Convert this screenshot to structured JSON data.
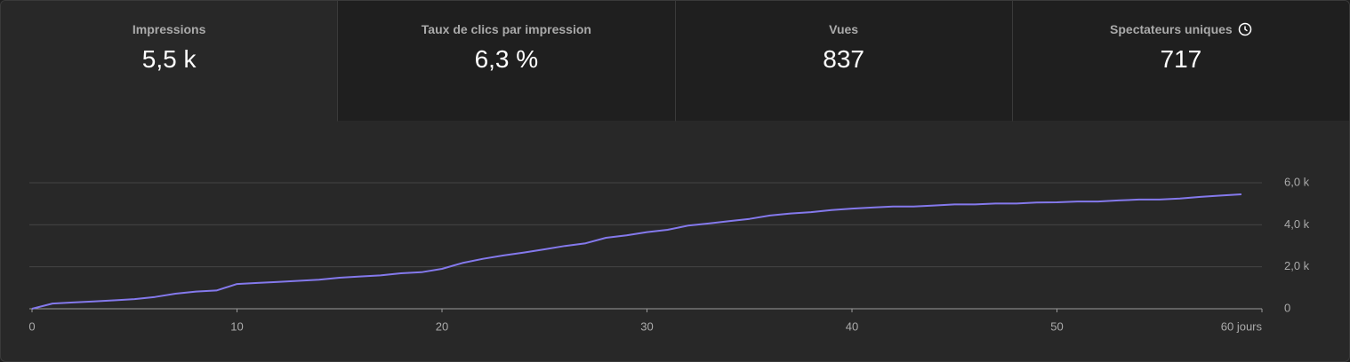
{
  "metrics": [
    {
      "label": "Impressions",
      "value": "5,5 k"
    },
    {
      "label": "Taux de clics par impression",
      "value": "6,3 %"
    },
    {
      "label": "Vues",
      "value": "837"
    },
    {
      "label": "Spectateurs uniques",
      "value": "717"
    }
  ],
  "chart_data": {
    "type": "line",
    "color": "#8479ec",
    "grid": true,
    "x": [
      0,
      1,
      2,
      3,
      4,
      5,
      6,
      7,
      8,
      9,
      10,
      11,
      12,
      13,
      14,
      15,
      16,
      17,
      18,
      19,
      20,
      21,
      22,
      23,
      24,
      25,
      26,
      27,
      28,
      29,
      30,
      31,
      32,
      33,
      34,
      35,
      36,
      37,
      38,
      39,
      40,
      41,
      42,
      43,
      44,
      45,
      46,
      47,
      48,
      49,
      50,
      51,
      52,
      53,
      54,
      55,
      56,
      57,
      58,
      59
    ],
    "values": [
      0,
      250,
      300,
      350,
      400,
      460,
      560,
      720,
      820,
      870,
      1180,
      1230,
      1280,
      1330,
      1380,
      1480,
      1540,
      1590,
      1690,
      1740,
      1900,
      2180,
      2380,
      2540,
      2680,
      2830,
      2990,
      3120,
      3380,
      3500,
      3650,
      3760,
      3960,
      4060,
      4170,
      4280,
      4440,
      4540,
      4600,
      4700,
      4770,
      4820,
      4870,
      4870,
      4920,
      4970,
      4970,
      5010,
      5010,
      5060,
      5070,
      5110,
      5110,
      5160,
      5200,
      5200,
      5250,
      5330,
      5390,
      5450
    ],
    "xlim": [
      0,
      60
    ],
    "xticks": [
      0,
      10,
      20,
      30,
      40,
      50,
      {
        "value": 60,
        "label": "60 jours"
      }
    ],
    "ylim": [
      0,
      6000
    ],
    "yticks": [
      0,
      {
        "value": 2000,
        "label": "2,0 k"
      },
      {
        "value": 4000,
        "label": "4,0 k"
      },
      {
        "value": 6000,
        "label": "6,0 k"
      }
    ]
  }
}
